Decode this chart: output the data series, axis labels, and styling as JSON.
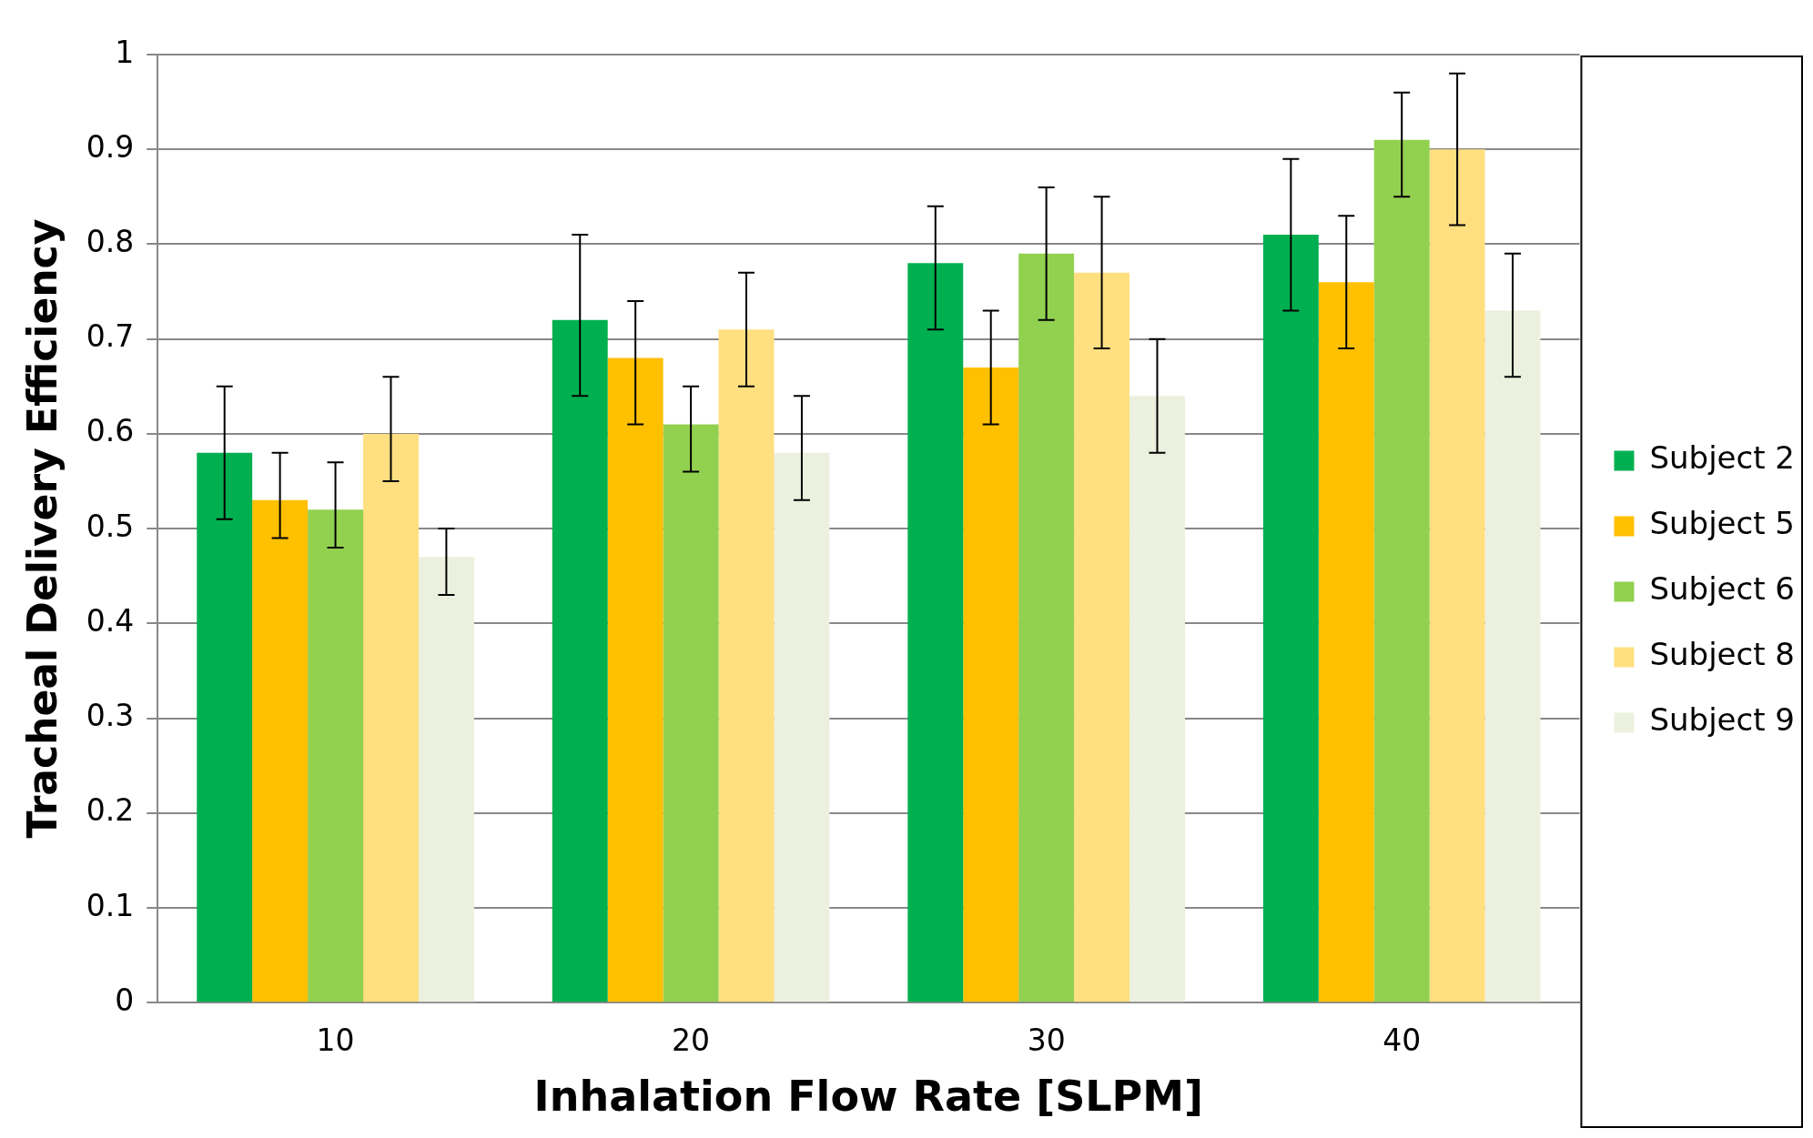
{
  "chart_data": {
    "type": "bar",
    "xlabel": "Inhalation Flow Rate [SLPM]",
    "ylabel": "Tracheal Delivery Efficiency",
    "categories": [
      "10",
      "20",
      "30",
      "40"
    ],
    "series": [
      {
        "name": "Subject 2",
        "color": "#00b050",
        "values": [
          0.58,
          0.72,
          0.78,
          0.81
        ],
        "errors": [
          [
            0.51,
            0.65
          ],
          [
            0.64,
            0.81
          ],
          [
            0.71,
            0.84
          ],
          [
            0.73,
            0.89
          ]
        ]
      },
      {
        "name": "Subject 5",
        "color": "#ffc000",
        "values": [
          0.53,
          0.68,
          0.67,
          0.76
        ],
        "errors": [
          [
            0.49,
            0.58
          ],
          [
            0.61,
            0.74
          ],
          [
            0.61,
            0.73
          ],
          [
            0.69,
            0.83
          ]
        ]
      },
      {
        "name": "Subject 6",
        "color": "#92d050",
        "values": [
          0.52,
          0.61,
          0.79,
          0.91
        ],
        "errors": [
          [
            0.48,
            0.57
          ],
          [
            0.56,
            0.65
          ],
          [
            0.72,
            0.86
          ],
          [
            0.85,
            0.96
          ]
        ]
      },
      {
        "name": "Subject 8",
        "color": "#ffdf80",
        "values": [
          0.6,
          0.71,
          0.77,
          0.9
        ],
        "errors": [
          [
            0.55,
            0.66
          ],
          [
            0.65,
            0.77
          ],
          [
            0.69,
            0.85
          ],
          [
            0.82,
            0.98
          ]
        ]
      },
      {
        "name": "Subject 9",
        "color": "#ebf1de",
        "values": [
          0.47,
          0.58,
          0.64,
          0.73
        ],
        "errors": [
          [
            0.43,
            0.5
          ],
          [
            0.53,
            0.64
          ],
          [
            0.58,
            0.7
          ],
          [
            0.66,
            0.79
          ]
        ]
      }
    ],
    "ylim": [
      0,
      1
    ],
    "yticks": [
      0,
      0.1,
      0.2,
      0.3,
      0.4,
      0.5,
      0.6,
      0.7,
      0.8,
      0.9,
      1
    ],
    "grid": "y",
    "legend": "right"
  }
}
